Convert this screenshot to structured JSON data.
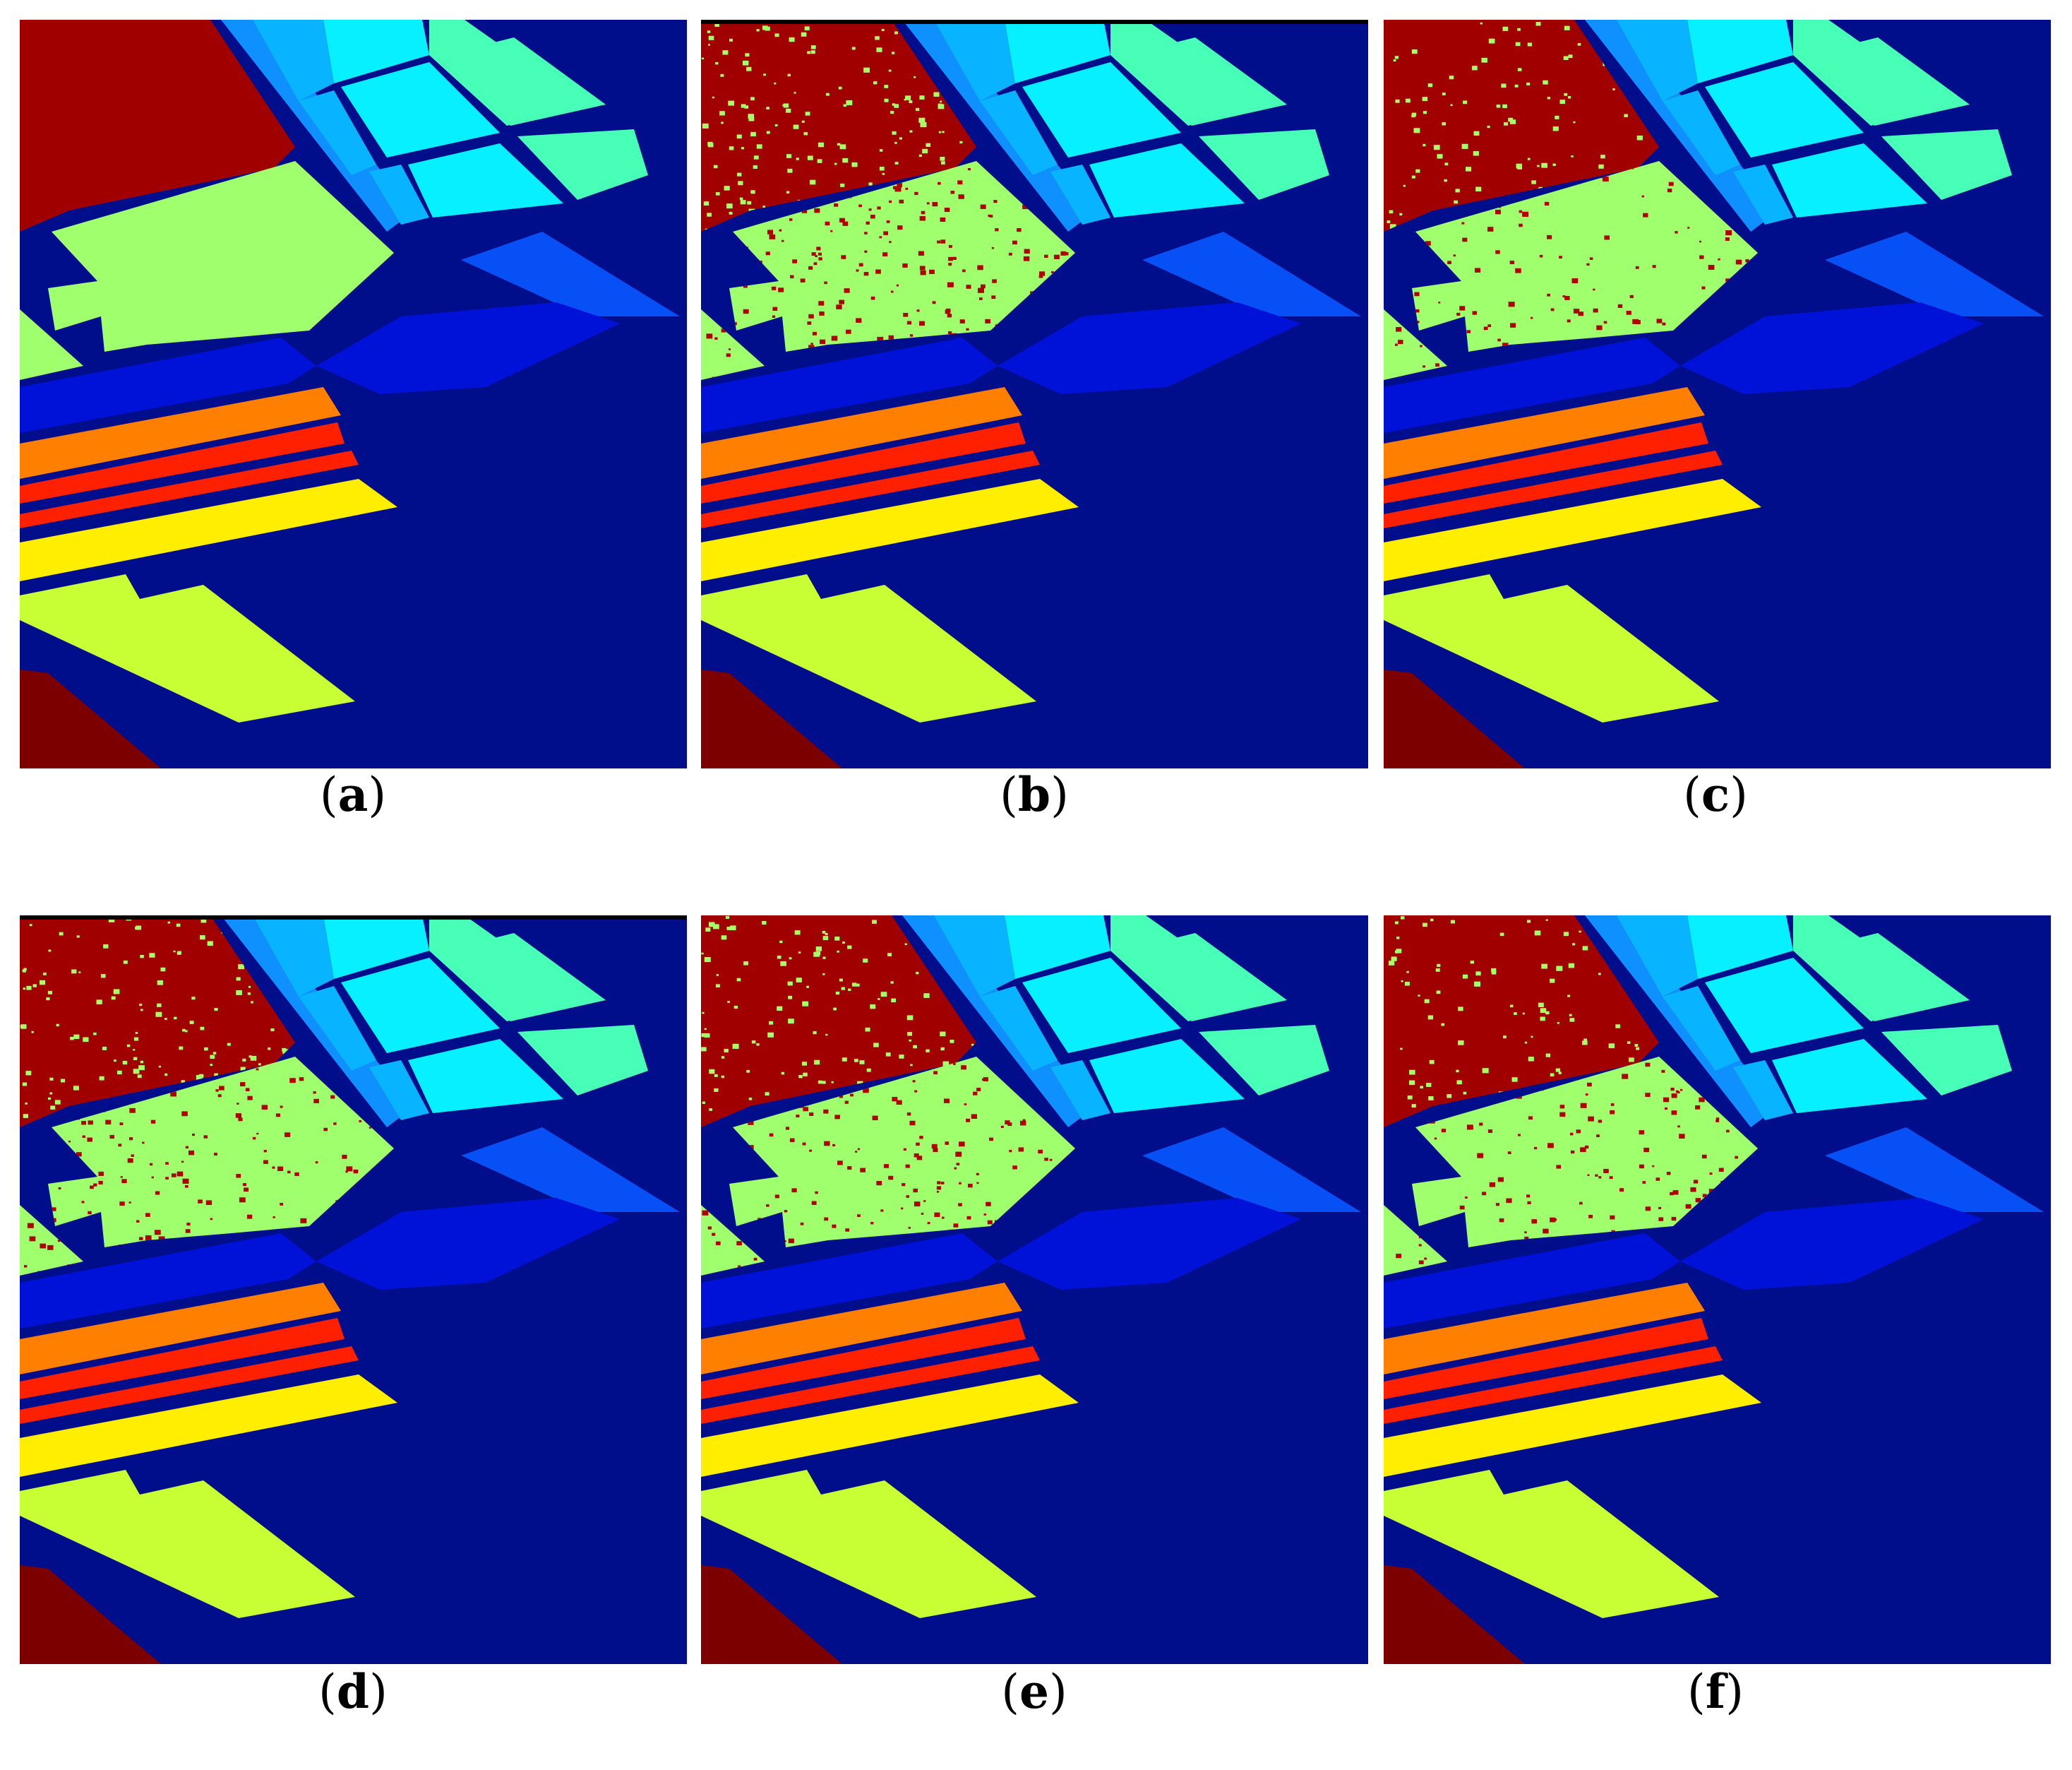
{
  "figure": {
    "panels": [
      {
        "id": "a",
        "label": "a",
        "noise": 0,
        "topbar": false
      },
      {
        "id": "b",
        "label": "b",
        "noise": 0.18,
        "topbar": true
      },
      {
        "id": "c",
        "label": "c",
        "noise": 0.1,
        "topbar": false
      },
      {
        "id": "d",
        "label": "d",
        "noise": 0.16,
        "topbar": true
      },
      {
        "id": "e",
        "label": "e",
        "noise": 0.13,
        "topbar": false
      },
      {
        "id": "f",
        "label": "f",
        "noise": 0.11,
        "topbar": false
      }
    ],
    "paren_open": "(",
    "paren_close": ")"
  },
  "colors": {
    "background": "#000e8c",
    "road": "#00098a",
    "dark_red": "#a00000",
    "maroon": "#7c0000",
    "light_green": "#a0ff6c",
    "yellow_green": "#c8ff34",
    "aqua_green": "#48ffb8",
    "cyan": "#06f0ff",
    "light_blue": "#08b4ff",
    "sky_blue": "#0e90ff",
    "mid_blue": "#0750f6",
    "royal_blue": "#0012d8",
    "orange": "#ff8000",
    "red_orange": "#ff2000",
    "yellow": "#ffee00",
    "noise_red": "#b00000",
    "noise_green": "#a6ff64"
  }
}
